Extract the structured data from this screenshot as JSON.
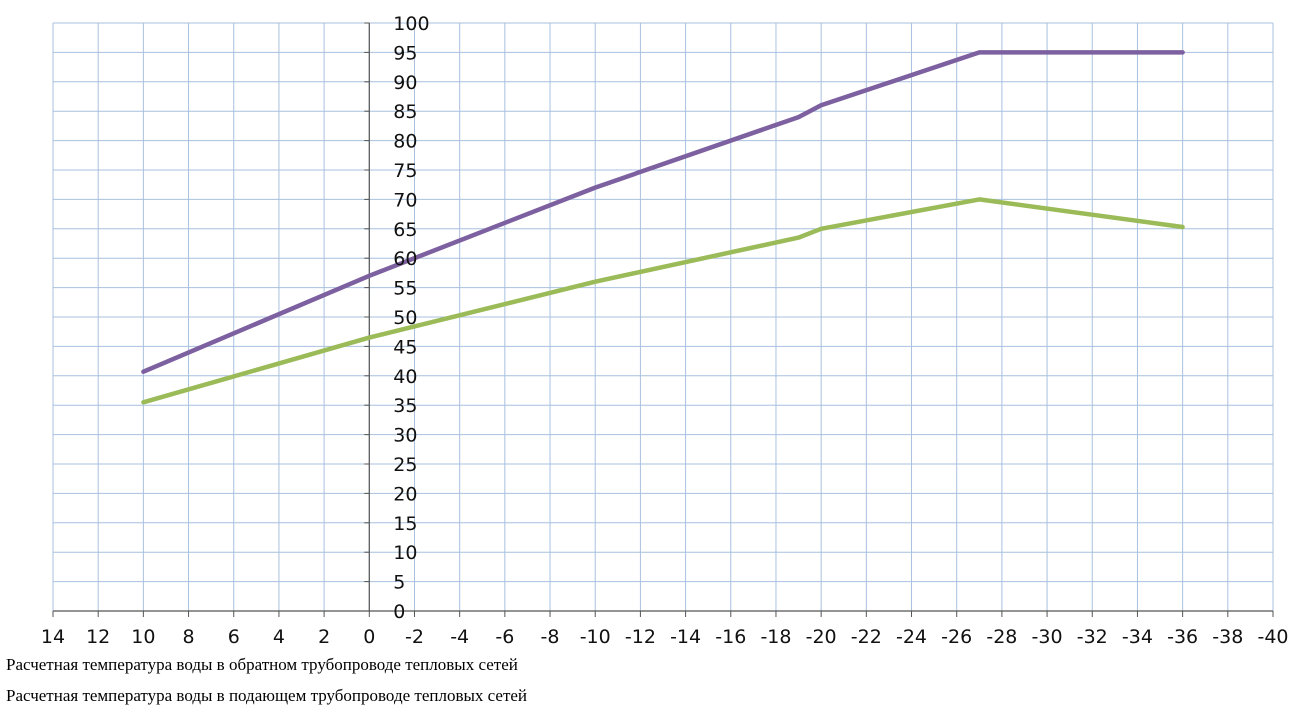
{
  "chart_data": {
    "type": "line",
    "title": "",
    "xlabel": "",
    "ylabel": "",
    "xlim": [
      14,
      -40
    ],
    "ylim": [
      0,
      100
    ],
    "x_ticks": [
      14,
      12,
      10,
      8,
      6,
      4,
      2,
      0,
      -2,
      -4,
      -6,
      -8,
      -10,
      -12,
      -14,
      -16,
      -18,
      -20,
      -22,
      -24,
      -26,
      -28,
      -30,
      -32,
      -34,
      -36,
      -38,
      -40
    ],
    "y_ticks": [
      0,
      5,
      10,
      15,
      20,
      25,
      30,
      35,
      40,
      45,
      50,
      55,
      60,
      65,
      70,
      75,
      80,
      85,
      90,
      95,
      100
    ],
    "grid": true,
    "y_axis_at_x": 0,
    "series": [
      {
        "color": "#7d60a0",
        "x": [
          10,
          0,
          -10,
          -19,
          -20,
          -27,
          -28,
          -36
        ],
        "y": [
          40.7,
          57,
          72,
          84,
          86,
          95,
          95,
          95
        ]
      },
      {
        "color": "#9bbb59",
        "x": [
          10,
          0,
          -10,
          -19,
          -20,
          -27,
          -36
        ],
        "y": [
          35.5,
          46.5,
          56,
          63.5,
          65,
          70,
          65.3
        ]
      }
    ]
  },
  "legend": [
    {
      "label": "Расчетная температура воды в обратном трубопроводе тепловых сетей"
    },
    {
      "label": "Расчетная температура воды в подающем трубопроводе тепловых сетей"
    }
  ],
  "colors": {
    "grid": "#a8c0df",
    "axis": "#555555"
  }
}
